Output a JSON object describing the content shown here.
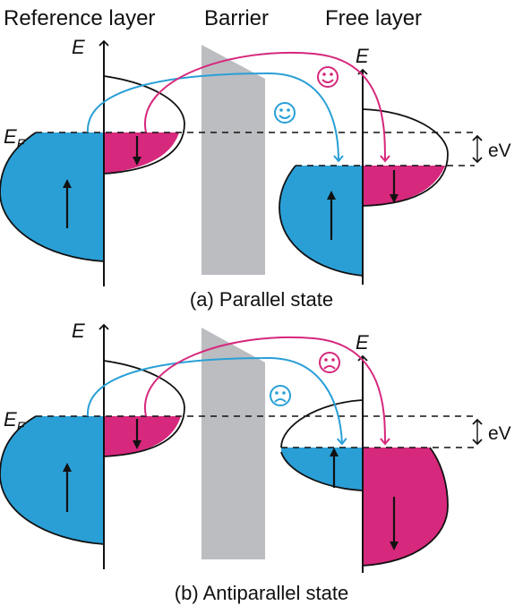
{
  "titles": {
    "reference_layer": "Reference layer",
    "barrier": "Barrier",
    "free_layer": "Free layer"
  },
  "axis_label": "E",
  "fermi_label": "E",
  "fermi_subscript": "F",
  "bias_label": "eV",
  "panels": {
    "a": {
      "caption": "(a) Parallel state",
      "outcome": "happy"
    },
    "b": {
      "caption": "(b) Antiparallel state",
      "outcome": "sad"
    }
  },
  "colors": {
    "spin_up": "#2a9fd6",
    "spin_down": "#d6287c",
    "barrier": "#bcbdc1",
    "line": "#111111"
  },
  "icons": [
    "up-arrow-icon",
    "down-arrow-icon",
    "smiley-face-icon",
    "frowning-face-icon"
  ]
}
